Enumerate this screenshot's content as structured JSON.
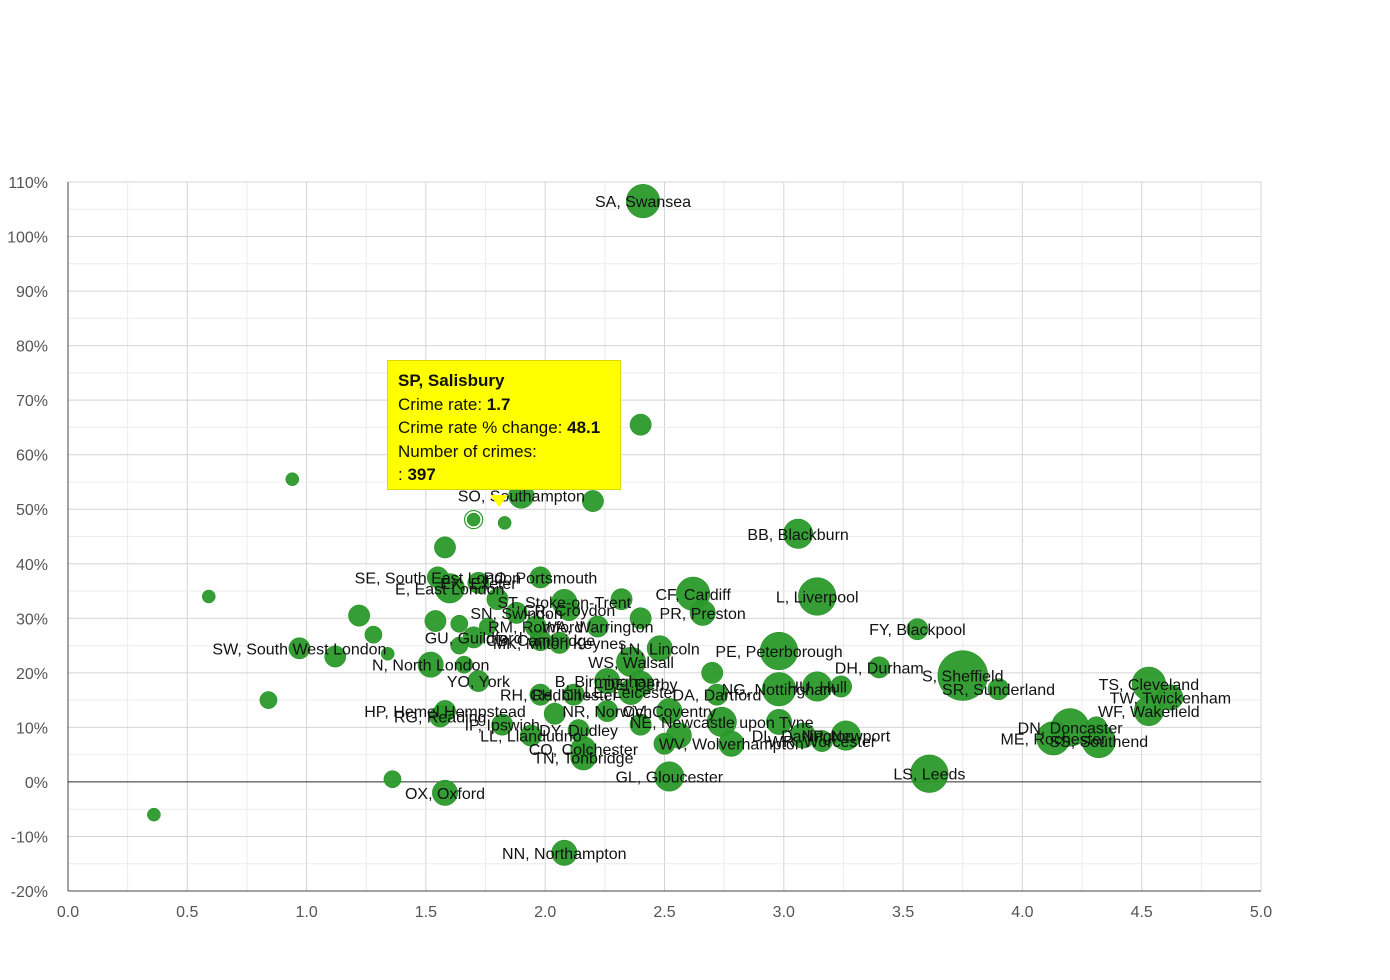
{
  "chart_data": {
    "type": "scatter",
    "xlim": [
      0,
      5
    ],
    "ylim": [
      -20,
      110
    ],
    "x_ticks": [
      "0.0",
      "0.5",
      "1.0",
      "1.5",
      "2.0",
      "2.5",
      "3.0",
      "3.5",
      "4.0",
      "4.5",
      "5.0"
    ],
    "y_ticks": [
      "-20%",
      "-10%",
      "0%",
      "10%",
      "20%",
      "30%",
      "40%",
      "50%",
      "60%",
      "70%",
      "80%",
      "90%",
      "100%",
      "110%"
    ],
    "grid": true,
    "color": "#2a9a2a",
    "points": [
      {
        "x": 2.41,
        "y": 106.5,
        "size": 6,
        "label": "SA, Swansea"
      },
      {
        "x": 2.4,
        "y": 65.5,
        "size": 3
      },
      {
        "x": 0.94,
        "y": 55.5,
        "size": 1
      },
      {
        "x": 1.7,
        "y": 48.1,
        "size": 1,
        "label": "SP, Salisbury",
        "highlight": true
      },
      {
        "x": 1.83,
        "y": 47.5,
        "size": 1
      },
      {
        "x": 1.9,
        "y": 52.5,
        "size": 4,
        "label": "SO, Southampton"
      },
      {
        "x": 2.2,
        "y": 51.5,
        "size": 3
      },
      {
        "x": 3.06,
        "y": 45.5,
        "size": 5,
        "label": "BB, Blackburn"
      },
      {
        "x": 1.58,
        "y": 43,
        "size": 3
      },
      {
        "x": 0.59,
        "y": 34,
        "size": 1
      },
      {
        "x": 1.55,
        "y": 37.5,
        "size": 3,
        "label": "SE, South East London"
      },
      {
        "x": 1.6,
        "y": 35.5,
        "size": 5,
        "label": "E, East London"
      },
      {
        "x": 1.72,
        "y": 36.5,
        "size": 3,
        "label": "EX, Exeter"
      },
      {
        "x": 1.98,
        "y": 37.5,
        "size": 3,
        "label": "PO, Portsmouth"
      },
      {
        "x": 2.62,
        "y": 34.5,
        "size": 6,
        "label": "CF, Cardiff"
      },
      {
        "x": 3.14,
        "y": 34,
        "size": 7,
        "label": "L, Liverpool"
      },
      {
        "x": 1.22,
        "y": 30.5,
        "size": 3
      },
      {
        "x": 2.32,
        "y": 33.5,
        "size": 3
      },
      {
        "x": 1.8,
        "y": 33.5,
        "size": 3
      },
      {
        "x": 2.08,
        "y": 33,
        "size": 4,
        "label": "ST, Stoke-on-Trent"
      },
      {
        "x": 1.88,
        "y": 31,
        "size": 3,
        "label": "SN, Swindon"
      },
      {
        "x": 2.1,
        "y": 31.5,
        "size": 3,
        "label": "CR, Croydon"
      },
      {
        "x": 2.4,
        "y": 30,
        "size": 3
      },
      {
        "x": 2.66,
        "y": 31,
        "size": 4,
        "label": "PR, Preston"
      },
      {
        "x": 3.56,
        "y": 28,
        "size": 3,
        "label": "FY, Blackpool"
      },
      {
        "x": 1.28,
        "y": 27,
        "size": 2
      },
      {
        "x": 1.54,
        "y": 29.5,
        "size": 3
      },
      {
        "x": 1.64,
        "y": 29,
        "size": 2
      },
      {
        "x": 1.76,
        "y": 28.5,
        "size": 2
      },
      {
        "x": 1.96,
        "y": 28.5,
        "size": 3,
        "label": "RM, Romford"
      },
      {
        "x": 2.22,
        "y": 28.5,
        "size": 3,
        "label": "WA, Warrington"
      },
      {
        "x": 1.7,
        "y": 26.5,
        "size": 3,
        "label": "GU, Guildford"
      },
      {
        "x": 1.64,
        "y": 25,
        "size": 2
      },
      {
        "x": 1.98,
        "y": 26,
        "size": 3,
        "label": "CB, Cambridge"
      },
      {
        "x": 2.06,
        "y": 25.5,
        "size": 3,
        "label": "MK, Milton Keynes"
      },
      {
        "x": 2.48,
        "y": 24.5,
        "size": 4,
        "label": "LN, Lincoln"
      },
      {
        "x": 2.98,
        "y": 24,
        "size": 7,
        "label": "PE, Peterborough"
      },
      {
        "x": 0.97,
        "y": 24.5,
        "size": 3,
        "label": "SW, South West London"
      },
      {
        "x": 1.12,
        "y": 23,
        "size": 3
      },
      {
        "x": 1.34,
        "y": 23.5,
        "size": 1
      },
      {
        "x": 1.52,
        "y": 21.5,
        "size": 4,
        "label": "N, North London"
      },
      {
        "x": 1.66,
        "y": 21.5,
        "size": 2
      },
      {
        "x": 2.36,
        "y": 22,
        "size": 5,
        "label": "WS, Walsall"
      },
      {
        "x": 2.7,
        "y": 20,
        "size": 3
      },
      {
        "x": 3.4,
        "y": 21,
        "size": 3,
        "label": "DH, Durham"
      },
      {
        "x": 3.75,
        "y": 19.5,
        "size": 10,
        "label": "S, Sheffield"
      },
      {
        "x": 1.72,
        "y": 18.5,
        "size": 3,
        "label": "YO, York"
      },
      {
        "x": 2.26,
        "y": 18.5,
        "size": 4,
        "label": "B, Birmingham"
      },
      {
        "x": 2.4,
        "y": 18,
        "size": 4,
        "label": "DE, Derby"
      },
      {
        "x": 2.98,
        "y": 17,
        "size": 6,
        "label": "NG, Nottingham"
      },
      {
        "x": 3.14,
        "y": 17.5,
        "size": 5,
        "label": "HU, Hull"
      },
      {
        "x": 3.24,
        "y": 17.5,
        "size": 3
      },
      {
        "x": 3.9,
        "y": 17,
        "size": 3,
        "label": "SR, Sunderland"
      },
      {
        "x": 4.53,
        "y": 18,
        "size": 6,
        "label": "TS, Cleveland"
      },
      {
        "x": 4.62,
        "y": 15.5,
        "size": 4,
        "label": "TW, Twickenham"
      },
      {
        "x": 1.98,
        "y": 16,
        "size": 3,
        "label": "RH, Redhill"
      },
      {
        "x": 2.12,
        "y": 16,
        "size": 3,
        "label": "CH, Chester"
      },
      {
        "x": 2.36,
        "y": 16.5,
        "size": 4,
        "label": "LE, Leicester"
      },
      {
        "x": 2.72,
        "y": 16,
        "size": 3,
        "label": "DA, Dartford"
      },
      {
        "x": 0.84,
        "y": 15,
        "size": 2
      },
      {
        "x": 1.58,
        "y": 13,
        "size": 3,
        "label": "HP, Hemel Hempstead"
      },
      {
        "x": 1.56,
        "y": 12,
        "size": 3,
        "label": "RG, Reading"
      },
      {
        "x": 2.04,
        "y": 12.5,
        "size": 3
      },
      {
        "x": 2.26,
        "y": 13,
        "size": 3,
        "label": "NR, Norwich"
      },
      {
        "x": 2.52,
        "y": 13,
        "size": 4,
        "label": "CV, Coventry"
      },
      {
        "x": 2.74,
        "y": 11,
        "size": 5,
        "label": "NE, Newcastle upon Tyne"
      },
      {
        "x": 2.98,
        "y": 11,
        "size": 4
      },
      {
        "x": 4.53,
        "y": 13,
        "size": 5,
        "label": "WF, Wakefield"
      },
      {
        "x": 1.82,
        "y": 10.5,
        "size": 3,
        "label": "IP, Ipswich"
      },
      {
        "x": 1.94,
        "y": 8.5,
        "size": 3,
        "label": "LL, Llandudno"
      },
      {
        "x": 2.14,
        "y": 9.5,
        "size": 3,
        "label": "DY, Dudley"
      },
      {
        "x": 2.4,
        "y": 10.5,
        "size": 3
      },
      {
        "x": 2.56,
        "y": 8.5,
        "size": 4
      },
      {
        "x": 3.08,
        "y": 8.5,
        "size": 4,
        "label": "DL, Darlington"
      },
      {
        "x": 3.26,
        "y": 8.5,
        "size": 5,
        "label": "NP, Newport"
      },
      {
        "x": 3.16,
        "y": 7.5,
        "size": 3,
        "label": "WR, Worcester"
      },
      {
        "x": 2.5,
        "y": 7,
        "size": 3
      },
      {
        "x": 4.2,
        "y": 10,
        "size": 7,
        "label": "DN, Doncaster"
      },
      {
        "x": 4.31,
        "y": 10,
        "size": 3
      },
      {
        "x": 4.13,
        "y": 8,
        "size": 6,
        "label": "ME, Rochester"
      },
      {
        "x": 4.32,
        "y": 7.5,
        "size": 6,
        "label": "SS, Southend"
      },
      {
        "x": 2.16,
        "y": 6,
        "size": 4,
        "label": "CO, Colchester"
      },
      {
        "x": 2.78,
        "y": 7,
        "size": 4,
        "label": "WV, Wolverhampton"
      },
      {
        "x": 2.16,
        "y": 4.5,
        "size": 4,
        "label": "TN, Tonbridge"
      },
      {
        "x": 1.36,
        "y": 0.5,
        "size": 2
      },
      {
        "x": 2.52,
        "y": 1,
        "size": 5,
        "label": "GL, Gloucester"
      },
      {
        "x": 3.61,
        "y": 1.5,
        "size": 7,
        "label": "LS, Leeds"
      },
      {
        "x": 1.58,
        "y": -2,
        "size": 4,
        "label": "OX, Oxford"
      },
      {
        "x": 0.36,
        "y": -6,
        "size": 1
      },
      {
        "x": 2.08,
        "y": -13,
        "size": 4,
        "label": "NN, Northampton"
      }
    ],
    "tooltip": {
      "title": "SP, Salisbury",
      "rate_label": "Crime rate: ",
      "rate_value": "1.7",
      "change_label": "Crime rate % change: ",
      "change_value": "48.1",
      "count_label": "Number of crimes:",
      "count_prefix": ": ",
      "count_value": "397"
    }
  }
}
